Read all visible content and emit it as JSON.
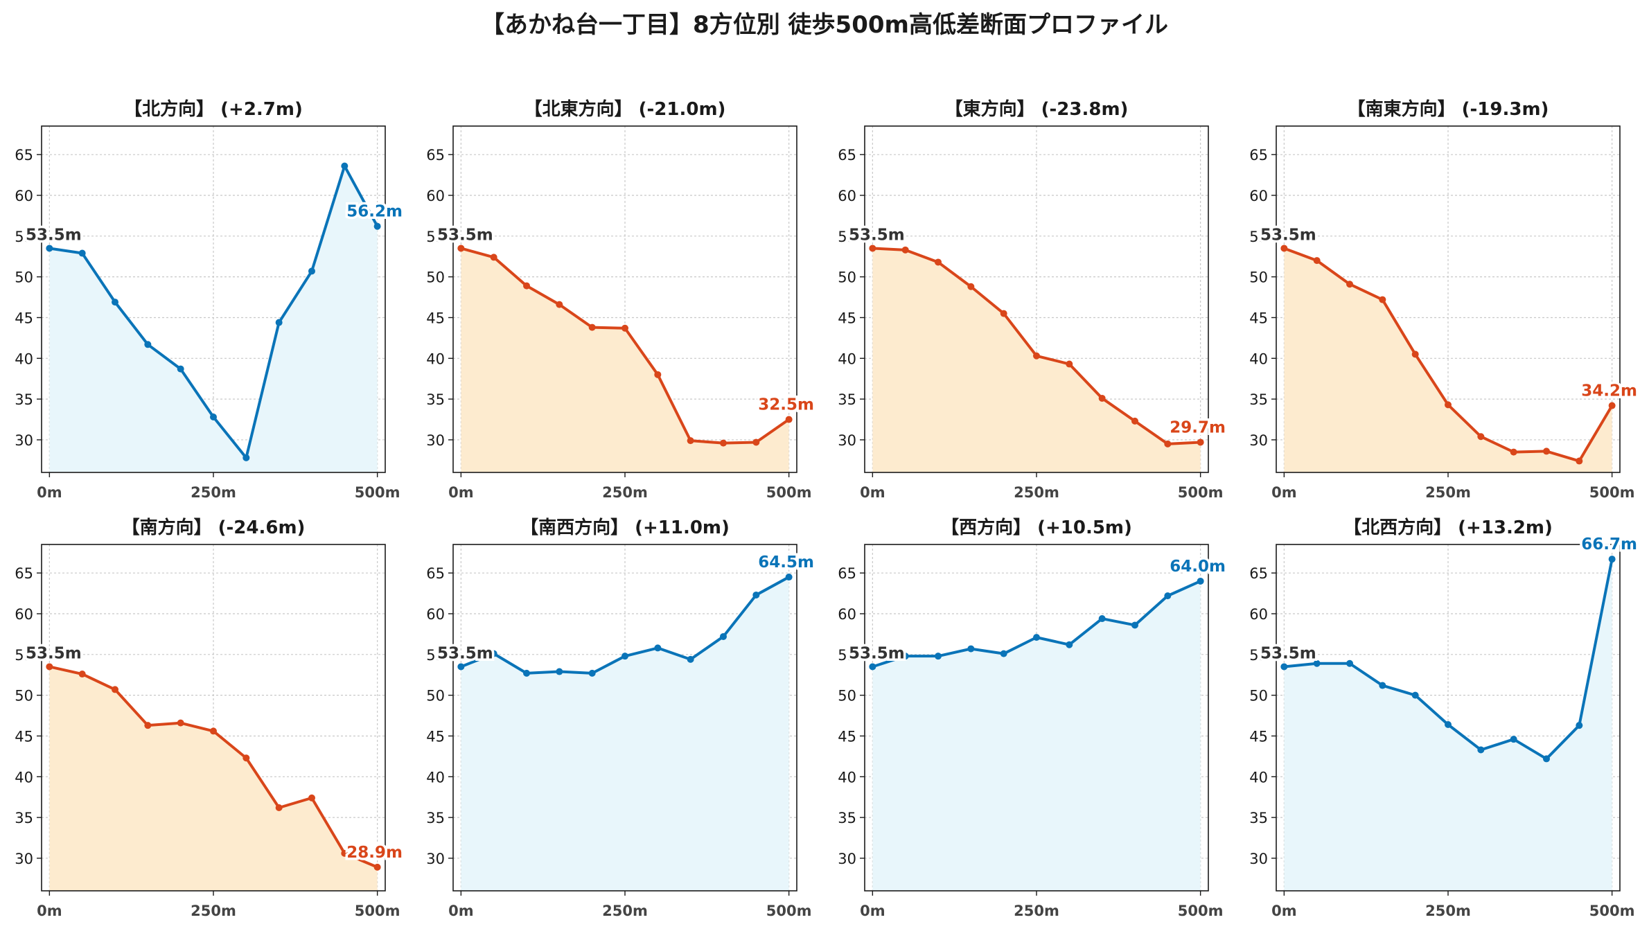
{
  "figure": {
    "title": "【あかね台一丁目】8方位別 徒歩500m高低差断面プロファイル"
  },
  "colors": {
    "positive_line": "#0a74b8",
    "positive_fill": "#e8f6fb",
    "negative_line": "#d9461a",
    "negative_fill": "#fdebcf",
    "start_label": "#333333",
    "grid": "#c8c8c8"
  },
  "chart_data": [
    {
      "type": "area",
      "title": "【北方向】 (+2.7m)",
      "trend": "up",
      "x": [
        0,
        50,
        100,
        150,
        200,
        250,
        300,
        350,
        400,
        450,
        500
      ],
      "values": [
        53.5,
        52.9,
        46.9,
        41.7,
        38.7,
        32.8,
        27.8,
        44.4,
        50.7,
        63.6,
        56.2
      ],
      "start_label": "53.5m",
      "end_label": "56.2m",
      "xticks": [
        "0m",
        "250m",
        "500m"
      ],
      "yticks": [
        30,
        35,
        40,
        45,
        50,
        55,
        60,
        65
      ],
      "xlim": [
        -12,
        512
      ],
      "ylim": [
        26,
        68.5
      ],
      "grid": true
    },
    {
      "type": "area",
      "title": "【北東方向】 (-21.0m)",
      "trend": "down",
      "x": [
        0,
        50,
        100,
        150,
        200,
        250,
        300,
        350,
        400,
        450,
        500
      ],
      "values": [
        53.5,
        52.4,
        48.9,
        46.6,
        43.8,
        43.7,
        38.0,
        29.9,
        29.6,
        29.7,
        32.5
      ],
      "start_label": "53.5m",
      "end_label": "32.5m",
      "xticks": [
        "0m",
        "250m",
        "500m"
      ],
      "yticks": [
        30,
        35,
        40,
        45,
        50,
        55,
        60,
        65
      ],
      "xlim": [
        -12,
        512
      ],
      "ylim": [
        26,
        68.5
      ],
      "grid": true
    },
    {
      "type": "area",
      "title": "【東方向】 (-23.8m)",
      "trend": "down",
      "x": [
        0,
        50,
        100,
        150,
        200,
        250,
        300,
        350,
        400,
        450,
        500
      ],
      "values": [
        53.5,
        53.3,
        51.8,
        48.8,
        45.5,
        40.3,
        39.3,
        35.1,
        32.3,
        29.5,
        29.7
      ],
      "start_label": "53.5m",
      "end_label": "29.7m",
      "xticks": [
        "0m",
        "250m",
        "500m"
      ],
      "yticks": [
        30,
        35,
        40,
        45,
        50,
        55,
        60,
        65
      ],
      "xlim": [
        -12,
        512
      ],
      "ylim": [
        26,
        68.5
      ],
      "grid": true
    },
    {
      "type": "area",
      "title": "【南東方向】 (-19.3m)",
      "trend": "down",
      "x": [
        0,
        50,
        100,
        150,
        200,
        250,
        300,
        350,
        400,
        450,
        500
      ],
      "values": [
        53.5,
        52.0,
        49.1,
        47.2,
        40.5,
        34.3,
        30.4,
        28.5,
        28.6,
        27.4,
        34.2
      ],
      "start_label": "53.5m",
      "end_label": "34.2m",
      "xticks": [
        "0m",
        "250m",
        "500m"
      ],
      "yticks": [
        30,
        35,
        40,
        45,
        50,
        55,
        60,
        65
      ],
      "xlim": [
        -12,
        512
      ],
      "ylim": [
        26,
        68.5
      ],
      "grid": true
    },
    {
      "type": "area",
      "title": "【南方向】 (-24.6m)",
      "trend": "down",
      "x": [
        0,
        50,
        100,
        150,
        200,
        250,
        300,
        350,
        400,
        450,
        500
      ],
      "values": [
        53.5,
        52.6,
        50.7,
        46.3,
        46.6,
        45.6,
        42.3,
        36.2,
        37.4,
        30.6,
        28.9
      ],
      "start_label": "53.5m",
      "end_label": "28.9m",
      "xticks": [
        "0m",
        "250m",
        "500m"
      ],
      "yticks": [
        30,
        35,
        40,
        45,
        50,
        55,
        60,
        65
      ],
      "xlim": [
        -12,
        512
      ],
      "ylim": [
        26,
        68.5
      ],
      "grid": true
    },
    {
      "type": "area",
      "title": "【南西方向】 (+11.0m)",
      "trend": "up",
      "x": [
        0,
        50,
        100,
        150,
        200,
        250,
        300,
        350,
        400,
        450,
        500
      ],
      "values": [
        53.5,
        55.1,
        52.7,
        52.9,
        52.7,
        54.8,
        55.8,
        54.4,
        57.2,
        62.3,
        64.5
      ],
      "start_label": "53.5m",
      "end_label": "64.5m",
      "xticks": [
        "0m",
        "250m",
        "500m"
      ],
      "yticks": [
        30,
        35,
        40,
        45,
        50,
        55,
        60,
        65
      ],
      "xlim": [
        -12,
        512
      ],
      "ylim": [
        26,
        68.5
      ],
      "grid": true
    },
    {
      "type": "area",
      "title": "【西方向】 (+10.5m)",
      "trend": "up",
      "x": [
        0,
        50,
        100,
        150,
        200,
        250,
        300,
        350,
        400,
        450,
        500
      ],
      "values": [
        53.5,
        54.8,
        54.8,
        55.7,
        55.1,
        57.1,
        56.2,
        59.4,
        58.6,
        62.2,
        64.0
      ],
      "start_label": "53.5m",
      "end_label": "64.0m",
      "xticks": [
        "0m",
        "250m",
        "500m"
      ],
      "yticks": [
        30,
        35,
        40,
        45,
        50,
        55,
        60,
        65
      ],
      "xlim": [
        -12,
        512
      ],
      "ylim": [
        26,
        68.5
      ],
      "grid": true
    },
    {
      "type": "area",
      "title": "【北西方向】 (+13.2m)",
      "trend": "up",
      "x": [
        0,
        50,
        100,
        150,
        200,
        250,
        300,
        350,
        400,
        450,
        500
      ],
      "values": [
        53.5,
        53.9,
        53.9,
        51.2,
        50.0,
        46.4,
        43.3,
        44.6,
        42.2,
        46.3,
        66.7
      ],
      "start_label": "53.5m",
      "end_label": "66.7m",
      "xticks": [
        "0m",
        "250m",
        "500m"
      ],
      "yticks": [
        30,
        35,
        40,
        45,
        50,
        55,
        60,
        65
      ],
      "xlim": [
        -12,
        512
      ],
      "ylim": [
        26,
        68.5
      ],
      "grid": true
    }
  ]
}
